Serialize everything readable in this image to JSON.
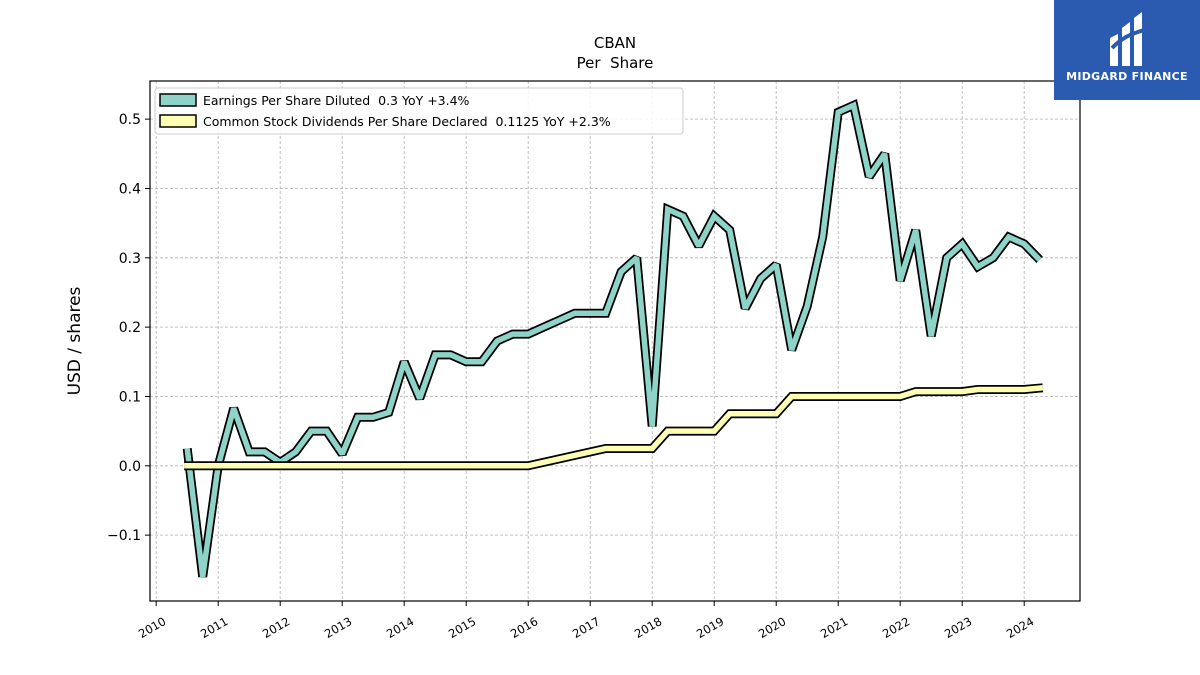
{
  "logo": {
    "text": "MIDGARD FINANCE"
  },
  "chart_data": {
    "type": "line",
    "title": "CBAN",
    "subtitle": "Per  Share",
    "ylabel": "USD / shares",
    "xlabel": "",
    "xlim": [
      2009.9,
      2024.9
    ],
    "ylim": [
      -0.195,
      0.555
    ],
    "yticks": [
      -0.1,
      0.0,
      0.1,
      0.2,
      0.3,
      0.4,
      0.5
    ],
    "ytick_labels": [
      "−0.1",
      "0.0",
      "0.1",
      "0.2",
      "0.3",
      "0.4",
      "0.5"
    ],
    "xticks": [
      2010,
      2011,
      2012,
      2013,
      2014,
      2015,
      2016,
      2017,
      2018,
      2019,
      2020,
      2021,
      2022,
      2023,
      2024
    ],
    "xtick_labels": [
      "2010",
      "2011",
      "2012",
      "2013",
      "2014",
      "2015",
      "2016",
      "2017",
      "2018",
      "2019",
      "2020",
      "2021",
      "2022",
      "2023",
      "2024"
    ],
    "grid": true,
    "legend_position": "top-left",
    "series": [
      {
        "name": "Earnings Per Share Diluted  0.3 YoY +3.4%",
        "color": "#8dd3c7",
        "x": [
          2010.5,
          2010.75,
          2011.0,
          2011.25,
          2011.5,
          2011.75,
          2012.0,
          2012.25,
          2012.5,
          2012.75,
          2013.0,
          2013.25,
          2013.5,
          2013.75,
          2014.0,
          2014.25,
          2014.5,
          2014.75,
          2015.0,
          2015.25,
          2015.5,
          2015.75,
          2016.0,
          2016.25,
          2016.5,
          2016.75,
          2017.0,
          2017.25,
          2017.5,
          2017.75,
          2018.0,
          2018.25,
          2018.5,
          2018.75,
          2019.0,
          2019.25,
          2019.5,
          2019.75,
          2020.0,
          2020.25,
          2020.5,
          2020.75,
          2021.0,
          2021.25,
          2021.5,
          2021.75,
          2022.0,
          2022.25,
          2022.5,
          2022.75,
          2023.0,
          2023.25,
          2023.5,
          2023.75,
          2024.0,
          2024.25
        ],
        "values": [
          0.025,
          -0.16,
          0.0,
          0.083,
          0.02,
          0.02,
          0.005,
          0.02,
          0.05,
          0.05,
          0.017,
          0.07,
          0.07,
          0.077,
          0.15,
          0.097,
          0.16,
          0.16,
          0.15,
          0.15,
          0.18,
          0.19,
          0.19,
          0.2,
          0.21,
          0.22,
          0.22,
          0.22,
          0.28,
          0.3,
          0.057,
          0.37,
          0.36,
          0.317,
          0.36,
          0.34,
          0.227,
          0.27,
          0.29,
          0.167,
          0.23,
          0.33,
          0.51,
          0.52,
          0.417,
          0.45,
          0.267,
          0.34,
          0.187,
          0.3,
          0.32,
          0.287,
          0.3,
          0.33,
          0.32,
          0.297
        ]
      },
      {
        "name": "Common Stock Dividends Per Share Declared  0.1125 YoY +2.3%",
        "color": "#ffffb3",
        "x": [
          2010.45,
          2016.0,
          2017.25,
          2018.0,
          2018.25,
          2019.0,
          2019.25,
          2020.0,
          2020.25,
          2022.0,
          2022.25,
          2023.0,
          2023.25,
          2024.0,
          2024.3
        ],
        "values": [
          0.0,
          0.0,
          0.025,
          0.025,
          0.05,
          0.05,
          0.075,
          0.075,
          0.1,
          0.1,
          0.107,
          0.107,
          0.11,
          0.11,
          0.1125
        ]
      }
    ]
  }
}
